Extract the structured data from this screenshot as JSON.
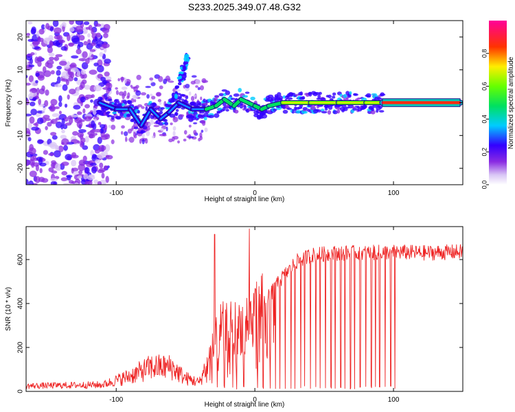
{
  "figure_title": "S233.2025.349.07.48.G32",
  "chart_data": [
    {
      "type": "heatmap",
      "title": "S233.2025.349.07.48.G32",
      "xlabel": "Height of straight line (km)",
      "ylabel": "Frequency (Hz)",
      "xlim": [
        -165,
        150
      ],
      "ylim": [
        -25,
        25
      ],
      "xticks": [
        -100,
        0,
        100
      ],
      "yticks": [
        -20,
        -10,
        0,
        10,
        20
      ],
      "colorbar": {
        "label": "Normalized spectral amplitude",
        "range": [
          0,
          1
        ],
        "ticks": [
          0.0,
          0.2,
          0.4,
          0.6,
          0.8
        ],
        "colormap": "rainbow"
      },
      "ridge": {
        "points": [
          {
            "x": -112,
            "y": 0
          },
          {
            "x": -100,
            "y": -2
          },
          {
            "x": -90,
            "y": -2
          },
          {
            "x": -82,
            "y": -7
          },
          {
            "x": -75,
            "y": -2
          },
          {
            "x": -68,
            "y": -5
          },
          {
            "x": -62,
            "y": -3
          },
          {
            "x": -55,
            "y": 0
          },
          {
            "x": -45,
            "y": -2
          },
          {
            "x": -35,
            "y": -2
          },
          {
            "x": -28,
            "y": -1
          },
          {
            "x": -22,
            "y": 1
          },
          {
            "x": -15,
            "y": -1
          },
          {
            "x": -10,
            "y": 1
          },
          {
            "x": 0,
            "y": -1
          },
          {
            "x": 5,
            "y": -2
          },
          {
            "x": 10,
            "y": -1
          },
          {
            "x": 20,
            "y": 0
          },
          {
            "x": 40,
            "y": 0
          },
          {
            "x": 60,
            "y": 0
          },
          {
            "x": 80,
            "y": 0
          },
          {
            "x": 92,
            "y": 0
          },
          {
            "x": 120,
            "y": 0
          },
          {
            "x": 148,
            "y": 0
          }
        ],
        "amplitude": [
          {
            "x_from": -112,
            "x_to": -40,
            "value": 0.3
          },
          {
            "x_from": -40,
            "x_to": 15,
            "value": 0.45
          },
          {
            "x_from": 15,
            "x_to": 92,
            "value": 0.7
          },
          {
            "x_from": 92,
            "x_to": 148,
            "value": 1.0
          }
        ],
        "branch": [
          {
            "x": -58,
            "y": 2
          },
          {
            "x": -52,
            "y": 9
          },
          {
            "x": -48,
            "y": 14
          }
        ]
      }
    },
    {
      "type": "line",
      "xlabel": "Height of straight line (km)",
      "ylabel": "SNR (10 * v/v)",
      "xlim": [
        -165,
        150
      ],
      "ylim": [
        0,
        750
      ],
      "xticks": [
        -100,
        0,
        100
      ],
      "yticks": [
        0,
        200,
        400,
        600
      ],
      "series_color": "#ee2222",
      "envelope": [
        {
          "x": -165,
          "y": 25
        },
        {
          "x": -110,
          "y": 30
        },
        {
          "x": -90,
          "y": 70
        },
        {
          "x": -75,
          "y": 110
        },
        {
          "x": -60,
          "y": 110
        },
        {
          "x": -50,
          "y": 60
        },
        {
          "x": -40,
          "y": 40
        },
        {
          "x": -33,
          "y": 150
        },
        {
          "x": -25,
          "y": 280
        },
        {
          "x": -10,
          "y": 300
        },
        {
          "x": 0,
          "y": 360
        },
        {
          "x": 10,
          "y": 430
        },
        {
          "x": 20,
          "y": 520
        },
        {
          "x": 30,
          "y": 590
        },
        {
          "x": 40,
          "y": 620
        },
        {
          "x": 60,
          "y": 630
        },
        {
          "x": 80,
          "y": 630
        },
        {
          "x": 100,
          "y": 635
        },
        {
          "x": 120,
          "y": 630
        },
        {
          "x": 150,
          "y": 635
        }
      ],
      "spikes": [
        {
          "x": -29,
          "y": 715
        },
        {
          "x": -4,
          "y": 740
        }
      ],
      "dropouts": [
        -27,
        -22,
        -16,
        -13,
        -8,
        2,
        6,
        11,
        15,
        18,
        22,
        26,
        29,
        33,
        36,
        40,
        44,
        47,
        51,
        55,
        58,
        62,
        65,
        69,
        72,
        76,
        80,
        84,
        87,
        90,
        94,
        98,
        101
      ]
    }
  ]
}
